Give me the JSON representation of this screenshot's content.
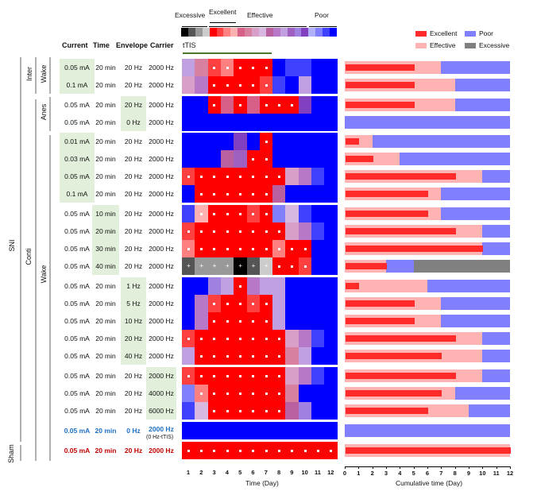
{
  "legend_top": {
    "excessive_label": "Excessive",
    "excellent_label": "Excellent",
    "effective_label": "Effective",
    "poor_label": "Poor",
    "strip": [
      "X0",
      "X1",
      "X2",
      "X3",
      "R0",
      "R1",
      "R2",
      "R3",
      "F0",
      "F1",
      "F2",
      "F3",
      "F4",
      "F5",
      "F6",
      "F7",
      "F8",
      "F9",
      "P0",
      "P1",
      "P2",
      "P3"
    ],
    "ttis_label": "tTIS"
  },
  "palette": {
    "X0": "#000000",
    "X1": "#555555",
    "X2": "#999999",
    "X3": "#cccccc",
    "R0": "#ff0000",
    "R1": "#ff4040",
    "R2": "#ff8080",
    "R3": "#ffb0b0",
    "F0": "#d86088",
    "F1": "#d880a0",
    "F2": "#d8a0c8",
    "F3": "#d8b8e0",
    "F4": "#b860a0",
    "F5": "#b878c8",
    "F6": "#c0a0e0",
    "F7": "#a060c0",
    "F8": "#a080e0",
    "F9": "#8040c0",
    "P0": "#b0b0ff",
    "P1": "#8080ff",
    "P2": "#4040ff",
    "P3": "#0000ff"
  },
  "table": {
    "headers": {
      "current": "Current",
      "time": "Time",
      "envelope": "Envelope",
      "carrier": "Carrier"
    },
    "carrier_note": "(0 Hz-tTIS)",
    "group_labels": {
      "sni": "SNI",
      "inter": "Inter",
      "conti": "Conti",
      "wake1": "Wake",
      "anes": "Anes",
      "wake2": "Wake",
      "sham": "Sham"
    },
    "rows": [
      {
        "current": "0.05 mA",
        "time": "20 min",
        "envelope": "20 Hz",
        "carrier": "2000 Hz"
      },
      {
        "current": "0.1 mA",
        "time": "20 min",
        "envelope": "20 Hz",
        "carrier": "2000 Hz"
      },
      {
        "current": "0.05 mA",
        "time": "20 min",
        "envelope": "20 Hz",
        "carrier": "2000 Hz"
      },
      {
        "current": "0.05 mA",
        "time": "20 min",
        "envelope": "0 Hz",
        "carrier": "2000 Hz"
      },
      {
        "current": "0.01 mA",
        "time": "20 min",
        "envelope": "20 Hz",
        "carrier": "2000 Hz"
      },
      {
        "current": "0.03 mA",
        "time": "20 min",
        "envelope": "20 Hz",
        "carrier": "2000 Hz"
      },
      {
        "current": "0.05 mA",
        "time": "20 min",
        "envelope": "20 Hz",
        "carrier": "2000 Hz"
      },
      {
        "current": "0.1 mA",
        "time": "20 min",
        "envelope": "20 Hz",
        "carrier": "2000 Hz"
      },
      {
        "current": "0.05 mA",
        "time": "10 min",
        "envelope": "20 Hz",
        "carrier": "2000 Hz"
      },
      {
        "current": "0.05 mA",
        "time": "20 min",
        "envelope": "20 Hz",
        "carrier": "2000 Hz"
      },
      {
        "current": "0.05 mA",
        "time": "30 min",
        "envelope": "20 Hz",
        "carrier": "2000 Hz"
      },
      {
        "current": "0.05 mA",
        "time": "40 min",
        "envelope": "20 Hz",
        "carrier": "2000 Hz"
      },
      {
        "current": "0.05 mA",
        "time": "20 min",
        "envelope": "1 Hz",
        "carrier": "2000 Hz"
      },
      {
        "current": "0.05 mA",
        "time": "20 min",
        "envelope": "5 Hz",
        "carrier": "2000 Hz"
      },
      {
        "current": "0.05 mA",
        "time": "20 min",
        "envelope": "10 Hz",
        "carrier": "2000 Hz"
      },
      {
        "current": "0.05 mA",
        "time": "20 min",
        "envelope": "20 Hz",
        "carrier": "2000 Hz"
      },
      {
        "current": "0.05 mA",
        "time": "20 min",
        "envelope": "40 Hz",
        "carrier": "2000 Hz"
      },
      {
        "current": "0.05 mA",
        "time": "20 min",
        "envelope": "20 Hz",
        "carrier": "2000 Hz"
      },
      {
        "current": "0.05 mA",
        "time": "20 min",
        "envelope": "20 Hz",
        "carrier": "4000 Hz"
      },
      {
        "current": "0.05 mA",
        "time": "20 min",
        "envelope": "20 Hz",
        "carrier": "6000 Hz"
      },
      {
        "current": "0.05 mA",
        "time": "20 min",
        "envelope": "0 Hz",
        "carrier": "2000 Hz"
      },
      {
        "current": "0.05 mA",
        "time": "20 min",
        "envelope": "20 Hz",
        "carrier": "2000 Hz"
      }
    ],
    "highlight_color": "#e2efda",
    "blue_text": "#1f6fc0",
    "red_text": "#c00000"
  },
  "chart_data": [
    {
      "type": "heatmap",
      "xlabel": "Time (Day)",
      "x": [
        1,
        2,
        3,
        4,
        5,
        6,
        7,
        8,
        9,
        10,
        11,
        12
      ],
      "rows": [
        [
          "F6",
          "F1",
          "R1.",
          "R2.",
          "R0.",
          "R0.",
          "R0.",
          "P3",
          "P2",
          "P2",
          "P3",
          "P3"
        ],
        [
          "F2",
          "F5",
          "R0.",
          "R0.",
          "R0.",
          "R0.",
          "R1.",
          "P2",
          "P3",
          "F6",
          "P3",
          "P3"
        ],
        [
          "P3",
          "P3",
          "R0.",
          "F0",
          "R0.",
          "F0",
          "R0.",
          "R0.",
          "R0.",
          "F9",
          "P3",
          "P3"
        ],
        [
          "P3",
          "P3",
          "P3",
          "P3",
          "P3",
          "P3",
          "P3",
          "P3",
          "P3",
          "P3",
          "P3",
          "P3"
        ],
        [
          "P3",
          "P3",
          "P3",
          "P3",
          "F9",
          "P3",
          "R0.",
          "P3",
          "P3",
          "P3",
          "P3",
          "P3"
        ],
        [
          "P3",
          "P3",
          "P3",
          "F4",
          "F7",
          "R0.",
          "R0.",
          "P3",
          "P3",
          "P3",
          "P3",
          "P3"
        ],
        [
          "R1.",
          "R0.",
          "R0.",
          "R0.",
          "R0.",
          "R0.",
          "R0.",
          "R0.",
          "F2",
          "F5",
          "P2",
          "P3"
        ],
        [
          "P3",
          "R0.",
          "R0.",
          "R0.",
          "R0.",
          "R0.",
          "R0.",
          "F4",
          "P3",
          "P3",
          "P3",
          "P3"
        ],
        [
          "P2",
          "R3.",
          "R0.",
          "R0.",
          "R0.",
          "R1.",
          "R0.",
          "P1",
          "F3",
          "P2",
          "P3",
          "P3"
        ],
        [
          "R1.",
          "R0.",
          "R0.",
          "R0.",
          "R0.",
          "R0.",
          "R0.",
          "R0.",
          "F2",
          "F5",
          "P2",
          "P3"
        ],
        [
          "R2.",
          "R0.",
          "R0.",
          "R0.",
          "R0.",
          "R0.",
          "R0.",
          "R2.",
          "R0.",
          "R0.",
          "P3",
          "P3"
        ],
        [
          "X1+",
          "X2+",
          "X2+",
          "X2+",
          "X0+",
          "X1+",
          "X3+",
          "R0.",
          "R0.",
          "R1.",
          "P3",
          "P3"
        ],
        [
          "P3",
          "P3",
          "F8",
          "F6",
          "R0.",
          "F5",
          "F6",
          "F6",
          "P3",
          "P3",
          "P3",
          "P3"
        ],
        [
          "P3",
          "F5",
          "R1.",
          "R0.",
          "R0.",
          "R1.",
          "R0.",
          "F6",
          "P3",
          "P3",
          "P3",
          "P3"
        ],
        [
          "P3",
          "F5",
          "R0.",
          "R0.",
          "R0.",
          "R0.",
          "R0.",
          "F6",
          "P3",
          "P3",
          "P3",
          "P3"
        ],
        [
          "R1.",
          "R0.",
          "R0.",
          "R0.",
          "R0.",
          "R0.",
          "R0.",
          "R0.",
          "F2",
          "F5",
          "P2",
          "P3"
        ],
        [
          "F6",
          "R0.",
          "R0.",
          "R0.",
          "R0.",
          "R0.",
          "R0.",
          "R0.",
          "F1",
          "F6",
          "P3",
          "P3"
        ],
        [
          "R1.",
          "R0.",
          "R0.",
          "R0.",
          "R0.",
          "R0.",
          "R0.",
          "R0.",
          "F2",
          "F5",
          "P2",
          "P3"
        ],
        [
          "P1",
          "R2.",
          "R0.",
          "R0.",
          "R0.",
          "R0.",
          "R0.",
          "R0.",
          "F1",
          "P3",
          "P3",
          "P3"
        ],
        [
          "P2",
          "F3",
          "R0.",
          "R0.",
          "R0.",
          "R0.",
          "R0.",
          "R0.",
          "F4",
          "F8",
          "P3",
          "P3"
        ],
        [
          "P3",
          "P3",
          "P3",
          "P3",
          "P3",
          "P3",
          "P3",
          "P3",
          "P3",
          "P3",
          "P3",
          "P3"
        ],
        [
          "R0.",
          "R0.",
          "R0.",
          "R0.",
          "R0.",
          "R0.",
          "R0.",
          "R0.",
          "R0.",
          "R0.",
          "R0.",
          "R0."
        ]
      ]
    },
    {
      "type": "bar",
      "orientation": "horizontal-stacked",
      "xlabel": "Cumulative time (Day)",
      "xlim": [
        0,
        12
      ],
      "xticks": [
        0,
        1,
        2,
        3,
        4,
        5,
        6,
        7,
        8,
        9,
        10,
        11,
        12
      ],
      "legend": [
        {
          "name": "Excellent",
          "color": "#ff2a2a"
        },
        {
          "name": "Poor",
          "color": "#8080ff"
        },
        {
          "name": "Effective",
          "color": "#ffb3b3"
        },
        {
          "name": "Excessive",
          "color": "#808080"
        }
      ],
      "legend_position": "top-right",
      "series": [
        {
          "excellent": 5,
          "effective": 2,
          "poor": 5,
          "excessive": 0
        },
        {
          "excellent": 5,
          "effective": 3,
          "poor": 4,
          "excessive": 0
        },
        {
          "excellent": 5,
          "effective": 3,
          "poor": 4,
          "excessive": 0
        },
        {
          "excellent": 0,
          "effective": 0,
          "poor": 12,
          "excessive": 0
        },
        {
          "excellent": 1,
          "effective": 1,
          "poor": 10,
          "excessive": 0
        },
        {
          "excellent": 2,
          "effective": 2,
          "poor": 8,
          "excessive": 0
        },
        {
          "excellent": 8,
          "effective": 2,
          "poor": 2,
          "excessive": 0
        },
        {
          "excellent": 6,
          "effective": 1,
          "poor": 5,
          "excessive": 0
        },
        {
          "excellent": 6,
          "effective": 1,
          "poor": 5,
          "excessive": 0
        },
        {
          "excellent": 8,
          "effective": 2,
          "poor": 2,
          "excessive": 0
        },
        {
          "excellent": 10,
          "effective": 0,
          "poor": 2,
          "excessive": 0
        },
        {
          "excellent": 3,
          "effective": 0,
          "poor": 2,
          "excessive": 7
        },
        {
          "excellent": 1,
          "effective": 5,
          "poor": 6,
          "excessive": 0
        },
        {
          "excellent": 5,
          "effective": 2,
          "poor": 5,
          "excessive": 0
        },
        {
          "excellent": 5,
          "effective": 2,
          "poor": 5,
          "excessive": 0
        },
        {
          "excellent": 8,
          "effective": 2,
          "poor": 2,
          "excessive": 0
        },
        {
          "excellent": 7,
          "effective": 3,
          "poor": 2,
          "excessive": 0
        },
        {
          "excellent": 8,
          "effective": 2,
          "poor": 2,
          "excessive": 0
        },
        {
          "excellent": 7,
          "effective": 1,
          "poor": 4,
          "excessive": 0
        },
        {
          "excellent": 6,
          "effective": 3,
          "poor": 3,
          "excessive": 0
        },
        {
          "excellent": 0,
          "effective": 0,
          "poor": 12,
          "excessive": 0
        },
        {
          "excellent": 12,
          "effective": 0,
          "poor": 0,
          "excessive": 0
        }
      ]
    }
  ]
}
